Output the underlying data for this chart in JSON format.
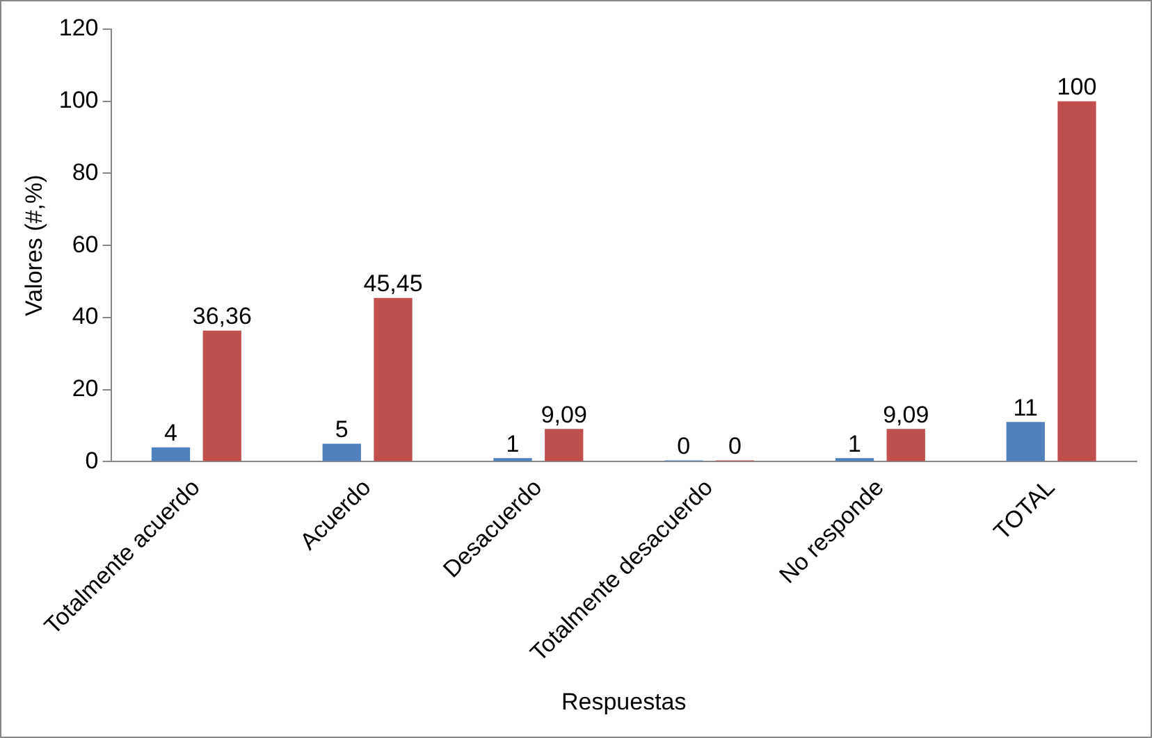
{
  "chart_data": {
    "type": "bar",
    "xlabel": "Respuestas",
    "ylabel": "Valores (#,%)",
    "categories": [
      "Totalmente acuerdo",
      "Acuerdo",
      "Desacuerdo",
      "Totalmente desacuerdo",
      "No responde",
      "TOTAL"
    ],
    "series": [
      {
        "color": "#4f81bd",
        "values": [
          4,
          5,
          1,
          0,
          1,
          11
        ],
        "value_labels": [
          "4",
          "5",
          "1",
          "0",
          "1",
          "11"
        ]
      },
      {
        "color": "#c0504d",
        "values": [
          36.36,
          45.45,
          9.09,
          0,
          9.09,
          100
        ],
        "value_labels": [
          "36,36",
          "45,45",
          "9,09",
          "0",
          "9,09",
          "100"
        ]
      }
    ],
    "ylim": [
      0,
      120
    ],
    "yticks": [
      0,
      20,
      40,
      60,
      80,
      100,
      120
    ],
    "grid": false,
    "legend": false
  }
}
